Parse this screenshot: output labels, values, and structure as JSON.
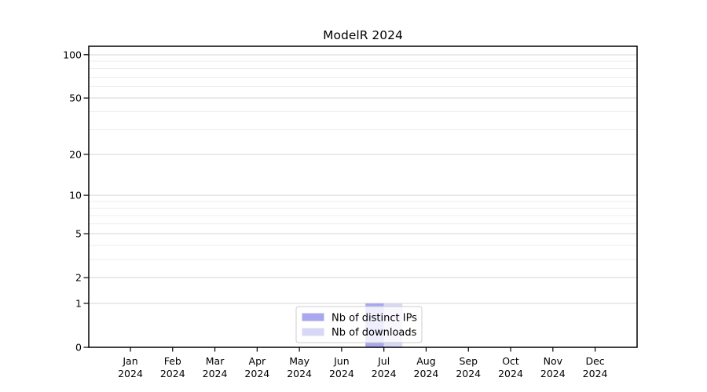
{
  "page": {
    "background": "#ffffff"
  },
  "chart_data": {
    "type": "bar",
    "title": "ModelR 2024",
    "categories": [
      {
        "month": "Jan",
        "year": "2024"
      },
      {
        "month": "Feb",
        "year": "2024"
      },
      {
        "month": "Mar",
        "year": "2024"
      },
      {
        "month": "Apr",
        "year": "2024"
      },
      {
        "month": "May",
        "year": "2024"
      },
      {
        "month": "Jun",
        "year": "2024"
      },
      {
        "month": "Jul",
        "year": "2024"
      },
      {
        "month": "Aug",
        "year": "2024"
      },
      {
        "month": "Sep",
        "year": "2024"
      },
      {
        "month": "Oct",
        "year": "2024"
      },
      {
        "month": "Nov",
        "year": "2024"
      },
      {
        "month": "Dec",
        "year": "2024"
      }
    ],
    "series": [
      {
        "name": "Nb of distinct IPs",
        "color": "#a8a8ee",
        "values": [
          0,
          0,
          0,
          0,
          0,
          0,
          1,
          0,
          0,
          0,
          0,
          0
        ]
      },
      {
        "name": "Nb of downloads",
        "color": "#d8d8f6",
        "values": [
          0,
          0,
          0,
          0,
          0,
          0,
          1,
          0,
          0,
          0,
          0,
          0
        ]
      }
    ],
    "xlabel": "",
    "ylabel": "",
    "y_axis": {
      "scale": "log10(1+v)",
      "tick_labels": [
        "0",
        "1",
        "2",
        "5",
        "10",
        "20",
        "50",
        "100"
      ],
      "ticks": [
        0,
        1,
        2,
        5,
        10,
        20,
        50,
        100
      ],
      "minor_gridlines": [
        3,
        4,
        6,
        7,
        8,
        9,
        30,
        40,
        60,
        70,
        80,
        90
      ],
      "ylim": [
        0,
        114
      ]
    },
    "legend": {
      "position": "lower center",
      "entries": [
        "Nb of distinct IPs",
        "Nb of downloads"
      ]
    },
    "grid": true
  },
  "colors": {
    "axis": "#000000",
    "major_grid": "#d4d4d4",
    "minor_grid": "#ececec",
    "legend_border": "#cccccc",
    "legend_bg_alpha": "rgba(255,255,255,0.8)",
    "bar_distinct_ips": "#a8a8ee",
    "bar_downloads": "#d8d8f6",
    "text": "#000000"
  }
}
